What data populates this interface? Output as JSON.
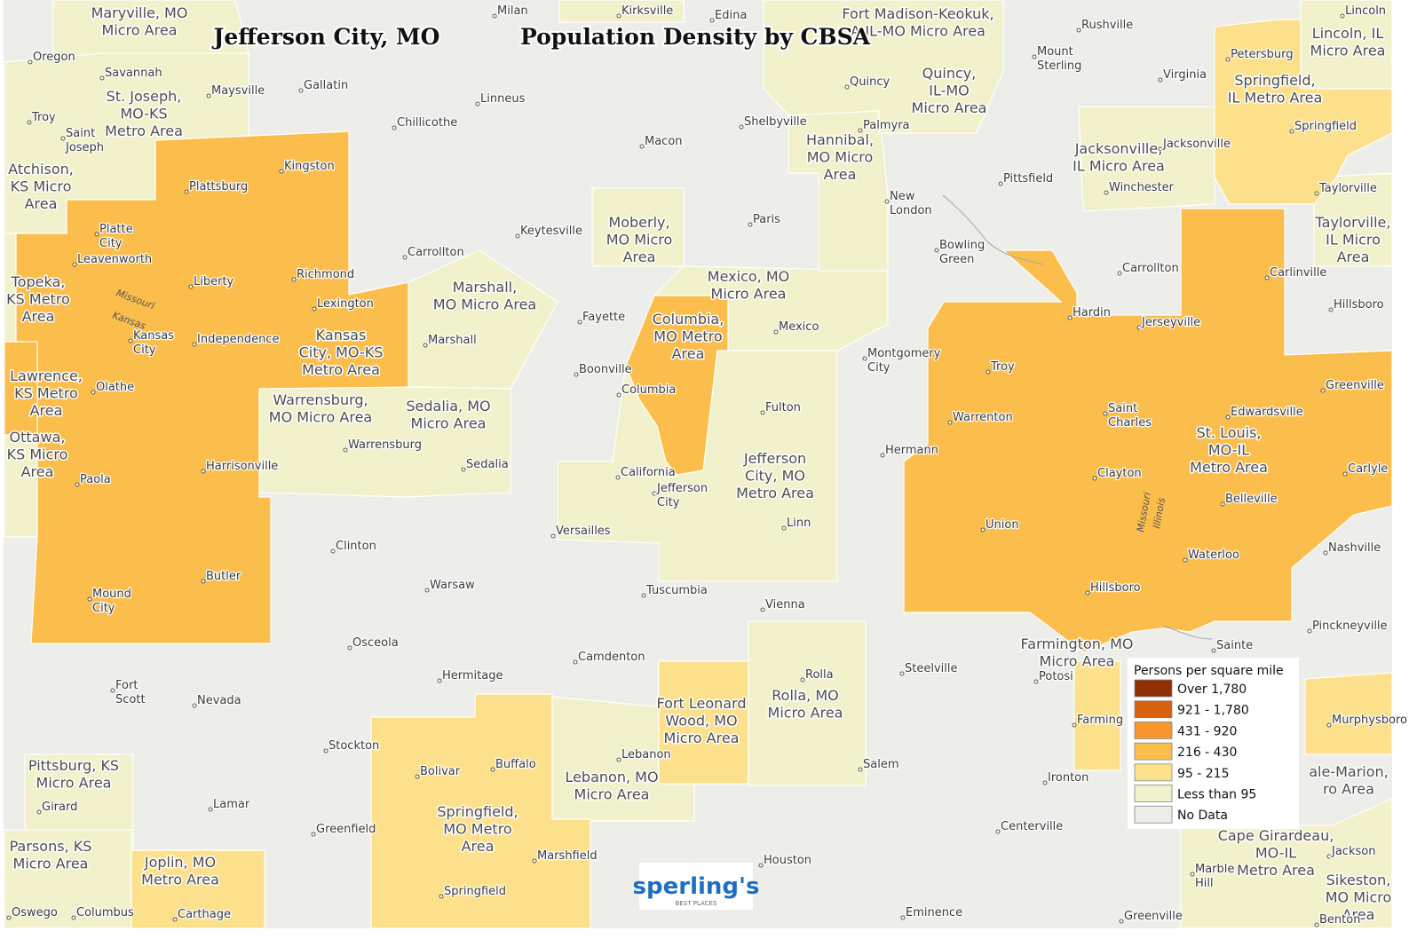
{
  "header": {
    "title": "Jefferson City, MO",
    "subtitle": "Population Density by CBSA"
  },
  "legend": {
    "title": "Persons per square mile",
    "items": [
      {
        "label": "Over 1,780",
        "color": "#8e2f05"
      },
      {
        "label": "921 - 1,780",
        "color": "#d9600f"
      },
      {
        "label": "431 - 920",
        "color": "#f6962b"
      },
      {
        "label": "216 - 430",
        "color": "#fbbe4c"
      },
      {
        "label": "95 - 215",
        "color": "#fde08b"
      },
      {
        "label": "Less than 95",
        "color": "#f1f1cb"
      },
      {
        "label": "No Data",
        "color": "#ededea"
      }
    ]
  },
  "areas": [
    {
      "label": [
        "Maryville, MO",
        "Micro Area"
      ]
    },
    {
      "label": [
        "St. Joseph,",
        "MO-KS",
        "Metro Area"
      ]
    },
    {
      "label": [
        "Atchison,",
        "KS Micro",
        "Area"
      ]
    },
    {
      "label": [
        "Topeka,",
        "KS Metro",
        "Area"
      ]
    },
    {
      "label": [
        "Lawrence,",
        "KS Metro",
        "Area"
      ]
    },
    {
      "label": [
        "Ottawa,",
        "KS Micro",
        "Area"
      ]
    },
    {
      "label": [
        "Kansas",
        "City, MO-KS",
        "Metro Area"
      ]
    },
    {
      "label": [
        "Warrensburg,",
        "MO Micro Area"
      ]
    },
    {
      "label": [
        "Sedalia, MO",
        "Micro Area"
      ]
    },
    {
      "label": [
        "Marshall,",
        "MO Micro Area"
      ]
    },
    {
      "label": [
        "Moberly,",
        "MO Micro",
        "Area"
      ]
    },
    {
      "label": [
        "Mexico, MO",
        "Micro Area"
      ]
    },
    {
      "label": [
        "Columbia,",
        "MO Metro",
        "Area"
      ]
    },
    {
      "label": [
        "Jefferson",
        "City, MO",
        "Metro Area"
      ]
    },
    {
      "label": [
        "Hannibal,",
        "MO Micro",
        "Area"
      ]
    },
    {
      "label": [
        "Quincy,",
        "IL-MO",
        "Micro Area"
      ]
    },
    {
      "label": [
        "Fort Madison-Keokuk,",
        "A-IL-MO Micro Area"
      ]
    },
    {
      "label": [
        "Jacksonville,",
        "IL Micro Area"
      ]
    },
    {
      "label": [
        "Springfield,",
        "IL Metro Area"
      ]
    },
    {
      "label": [
        "Lincoln, IL",
        "Micro Area"
      ]
    },
    {
      "label": [
        "Taylorville,",
        "IL Micro",
        "Area"
      ]
    },
    {
      "label": [
        "St. Louis,",
        "MO-IL",
        "Metro Area"
      ]
    },
    {
      "label": [
        "Farmington, MO",
        "Micro Area"
      ]
    },
    {
      "label": [
        "Rolla, MO",
        "Micro Area"
      ]
    },
    {
      "label": [
        "Fort Leonard",
        "Wood, MO",
        "Micro Area"
      ]
    },
    {
      "label": [
        "Lebanon, MO",
        "Micro Area"
      ]
    },
    {
      "label": [
        "Springfield,",
        "MO Metro",
        "Area"
      ]
    },
    {
      "label": [
        "Pittsburg, KS",
        "Micro Area"
      ]
    },
    {
      "label": [
        "Parsons, KS",
        "Micro Area"
      ]
    },
    {
      "label": [
        "Joplin, MO",
        "Metro Area"
      ]
    },
    {
      "label": [
        "Cape Girardeau,",
        "MO-IL",
        "Metro Area"
      ]
    },
    {
      "label": [
        "Sikeston,",
        "MO Micro",
        "Area"
      ]
    },
    {
      "label": [
        "ale-Marion,",
        "ro Area"
      ]
    }
  ],
  "cities": [
    [
      "Milan"
    ],
    [
      "Kirksville"
    ],
    [
      "Edina"
    ],
    [
      "Rushville"
    ],
    [
      "Lincoln"
    ],
    [
      "Oregon"
    ],
    [
      "Savannah"
    ],
    [
      "Maysville"
    ],
    [
      "Gallatin"
    ],
    [
      "Linneus"
    ],
    [
      "Mount",
      "Sterling"
    ],
    [
      "Virginia"
    ],
    [
      "Petersburg"
    ],
    [
      "Quincy"
    ],
    [
      "Troy"
    ],
    [
      "Chillicothe"
    ],
    [
      "Shelbyville"
    ],
    [
      "Palmyra"
    ],
    [
      "Saint",
      "Joseph"
    ],
    [
      "Macon"
    ],
    [
      "Jacksonville"
    ],
    [
      "Springfield"
    ],
    [
      "Kingston"
    ],
    [
      "Pittsfield"
    ],
    [
      "Winchester"
    ],
    [
      "Plattsburg"
    ],
    [
      "Taylorville"
    ],
    [
      "New",
      "London"
    ],
    [
      "Paris"
    ],
    [
      "Keytesville"
    ],
    [
      "Platte",
      "City"
    ],
    [
      "Bowling",
      "Green"
    ],
    [
      "Carrollton"
    ],
    [
      "Leavenworth"
    ],
    [
      "Carrollton"
    ],
    [
      "Carlinville"
    ],
    [
      "Richmond"
    ],
    [
      "Liberty"
    ],
    [
      "Lexington"
    ],
    [
      "Hillsboro"
    ],
    [
      "Hardin"
    ],
    [
      "Fayette"
    ],
    [
      "Jerseyville"
    ],
    [
      "Mexico"
    ],
    [
      "Kansas",
      "City"
    ],
    [
      "Independence"
    ],
    [
      "Marshall"
    ],
    [
      "Montgomery",
      "City"
    ],
    [
      "Troy"
    ],
    [
      "Boonville"
    ],
    [
      "Olathe"
    ],
    [
      "Greenville"
    ],
    [
      "Columbia"
    ],
    [
      "Fulton"
    ],
    [
      "Edwardsville"
    ],
    [
      "Saint",
      "Charles"
    ],
    [
      "Warrenton"
    ],
    [
      "Warrensburg"
    ],
    [
      "Hermann"
    ],
    [
      "Harrisonville"
    ],
    [
      "Sedalia"
    ],
    [
      "Carlyle"
    ],
    [
      "California"
    ],
    [
      "Clayton"
    ],
    [
      "Paola"
    ],
    [
      "Jefferson",
      "City"
    ],
    [
      "Belleville"
    ],
    [
      "Linn"
    ],
    [
      "Union"
    ],
    [
      "Versailles"
    ],
    [
      "Clinton"
    ],
    [
      "Nashville"
    ],
    [
      "Waterloo"
    ],
    [
      "Butler"
    ],
    [
      "Warsaw"
    ],
    [
      "Hillsboro"
    ],
    [
      "Tuscumbia"
    ],
    [
      "Mound",
      "City"
    ],
    [
      "Vienna"
    ],
    [
      "Pinckneyville"
    ],
    [
      "Osceola"
    ],
    [
      "Sainte"
    ],
    [
      "Camdenton"
    ],
    [
      "Steelville"
    ],
    [
      "Hermitage"
    ],
    [
      "Rolla"
    ],
    [
      "Potosi"
    ],
    [
      "Fort",
      "Scott"
    ],
    [
      "Nevada"
    ],
    [
      "Lebanon"
    ],
    [
      "Stockton"
    ],
    [
      "Salem"
    ],
    [
      "Buffalo"
    ],
    [
      "Bolivar"
    ],
    [
      "Ironton"
    ],
    [
      "Farming"
    ],
    [
      "Murphysboro"
    ],
    [
      "Girard"
    ],
    [
      "Lamar"
    ],
    [
      "Centerville"
    ],
    [
      "Greenfield"
    ],
    [
      "Jackson"
    ],
    [
      "Marshfield"
    ],
    [
      "Houston"
    ],
    [
      "Marble",
      "Hill"
    ],
    [
      "Springfield"
    ],
    [
      "Oswego"
    ],
    [
      "Columbus"
    ],
    [
      "Carthage"
    ],
    [
      "Eminence"
    ],
    [
      "Greenville"
    ],
    [
      "Benton"
    ]
  ],
  "rivers": [
    "Missouri",
    "Kansas",
    "Missouri",
    "Illinois"
  ],
  "logo": {
    "name": "sperling's",
    "tagline": "BEST PLACES"
  }
}
